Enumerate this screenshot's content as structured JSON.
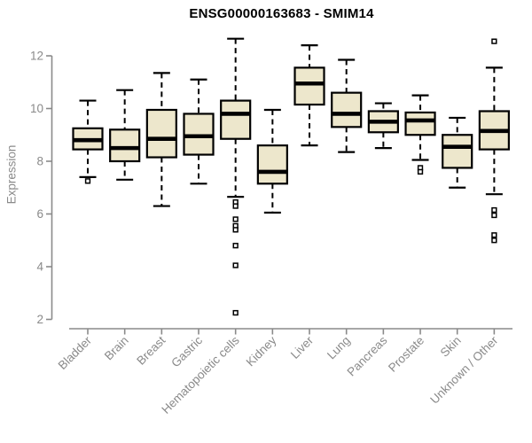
{
  "chart_data": {
    "type": "boxplot",
    "title": "ENSG00000163683 - SMIM14",
    "ylabel": "Expression",
    "xlabel": "",
    "ylim": [
      2,
      12.8
    ],
    "yticks": [
      2,
      4,
      6,
      8,
      10,
      12
    ],
    "grid": false,
    "legend": "none",
    "categories": [
      "Bladder",
      "Brain",
      "Breast",
      "Gastric",
      "Hematopoietic cells",
      "Kidney",
      "Liver",
      "Lung",
      "Pancreas",
      "Prostate",
      "Skin",
      "Unknown / Other"
    ],
    "series": [
      {
        "name": "Bladder",
        "whisker_low": 7.4,
        "q1": 8.45,
        "median": 8.8,
        "q3": 9.25,
        "whisker_high": 10.3,
        "outliers": [
          7.25
        ]
      },
      {
        "name": "Brain",
        "whisker_low": 7.3,
        "q1": 8.0,
        "median": 8.5,
        "q3": 9.2,
        "whisker_high": 10.7,
        "outliers": []
      },
      {
        "name": "Breast",
        "whisker_low": 6.3,
        "q1": 8.15,
        "median": 8.85,
        "q3": 9.95,
        "whisker_high": 11.35,
        "outliers": []
      },
      {
        "name": "Gastric",
        "whisker_low": 7.15,
        "q1": 8.25,
        "median": 8.95,
        "q3": 9.8,
        "whisker_high": 11.1,
        "outliers": []
      },
      {
        "name": "Hematopoietic cells",
        "whisker_low": 6.65,
        "q1": 8.85,
        "median": 9.8,
        "q3": 10.3,
        "whisker_high": 12.65,
        "outliers": [
          6.45,
          6.3,
          5.8,
          5.55,
          5.4,
          4.8,
          4.05,
          2.25
        ]
      },
      {
        "name": "Kidney",
        "whisker_low": 6.05,
        "q1": 7.15,
        "median": 7.6,
        "q3": 8.6,
        "whisker_high": 9.95,
        "outliers": []
      },
      {
        "name": "Liver",
        "whisker_low": 8.6,
        "q1": 10.15,
        "median": 10.95,
        "q3": 11.55,
        "whisker_high": 12.4,
        "outliers": []
      },
      {
        "name": "Lung",
        "whisker_low": 8.35,
        "q1": 9.3,
        "median": 9.8,
        "q3": 10.6,
        "whisker_high": 11.85,
        "outliers": []
      },
      {
        "name": "Pancreas",
        "whisker_low": 8.5,
        "q1": 9.1,
        "median": 9.5,
        "q3": 9.9,
        "whisker_high": 10.2,
        "outliers": []
      },
      {
        "name": "Prostate",
        "whisker_low": 8.05,
        "q1": 9.0,
        "median": 9.55,
        "q3": 9.85,
        "whisker_high": 10.5,
        "outliers": [
          7.75,
          7.6
        ]
      },
      {
        "name": "Skin",
        "whisker_low": 7.0,
        "q1": 7.75,
        "median": 8.55,
        "q3": 9.0,
        "whisker_high": 9.65,
        "outliers": []
      },
      {
        "name": "Unknown / Other",
        "whisker_low": 6.75,
        "q1": 8.45,
        "median": 9.15,
        "q3": 9.9,
        "whisker_high": 11.55,
        "outliers": [
          12.55,
          6.15,
          5.95,
          5.2,
          5.0
        ]
      }
    ],
    "colors": {
      "box_fill": "#EDE7CC",
      "box_border": "#000000",
      "median": "#000000",
      "whisker": "#000000",
      "outlier_fill": "#FFFFFF",
      "axis": "#8A8A8A",
      "tick_label": "#8A8A8A",
      "title": "#000000"
    }
  }
}
